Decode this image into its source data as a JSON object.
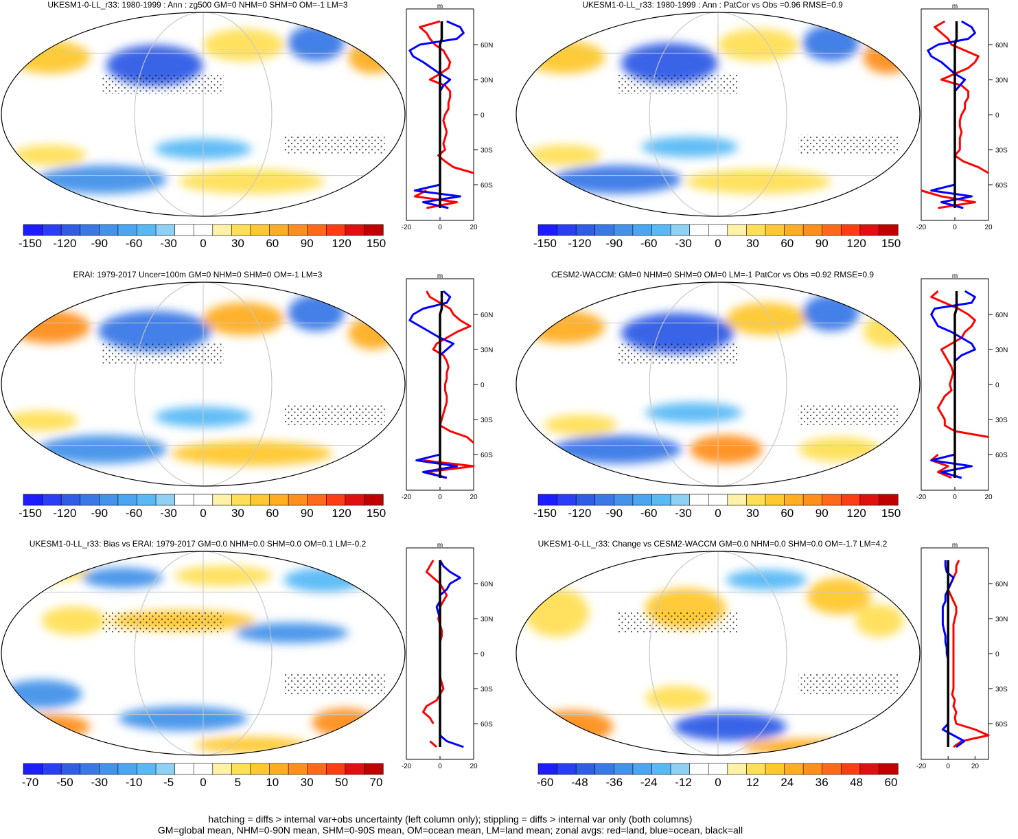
{
  "colors": {
    "land": "#ff0000",
    "ocean": "#0000ff",
    "all": "#000000",
    "colorbar_diverging": [
      "#1d1dff",
      "#2a3ff5",
      "#2f5de6",
      "#3a78e6",
      "#4592ea",
      "#4aa6f0",
      "#59b9f5",
      "#8fd0f5",
      "#ffffff",
      "#ffffff",
      "#fff1a8",
      "#ffdf57",
      "#ffc82e",
      "#ffae22",
      "#ff8f1c",
      "#ff6a1a",
      "#ff3d12",
      "#e01010",
      "#c00000"
    ],
    "map_outline": "#000000"
  },
  "footer": {
    "line1": "hatching = diffs > internal var+obs uncertainty (left column only); stippling = diffs > internal var only (both columns)",
    "line2": "GM=global mean, NHM=0-90N mean, SHM=0-90S mean, OM=ocean mean, LM=land mean; zonal avgs: red=land, blue=ocean, black=all"
  },
  "chart_data": [
    {
      "type": "heatmap",
      "title": "UKESM1-0-LL_r33: 1980-1999 : Ann : zg500 GM=0 NHM=0 SHM=0 OM=-1 LM=3",
      "colorbar_labels": [
        "-150",
        "-120",
        "-90",
        "-60",
        "-30",
        "0",
        "30",
        "60",
        "90",
        "120",
        "150"
      ],
      "zonal": {
        "units": "m",
        "xlim": [
          -20,
          20
        ],
        "xticks": [
          "-20",
          "0",
          "20"
        ],
        "lat_ticks": [
          "60N",
          "30N",
          "0",
          "30S",
          "60S"
        ],
        "lat": [
          80,
          75,
          70,
          65,
          60,
          55,
          50,
          45,
          40,
          35,
          30,
          25,
          20,
          15,
          10,
          5,
          0,
          -5,
          -10,
          -15,
          -20,
          -25,
          -30,
          -35,
          -40,
          -45,
          -50,
          -55,
          -60,
          -65,
          -70,
          -75,
          -80
        ],
        "series": [
          {
            "name": "land",
            "values": [
              0,
              -12,
              -8,
              -6,
              -3,
              2,
              4,
              6,
              5,
              0,
              -6,
              3,
              6,
              6,
              5,
              5,
              3,
              2,
              3,
              4,
              3,
              2,
              3,
              -1,
              3,
              8,
              20,
              null,
              null,
              -8,
              -15,
              10,
              -8
            ]
          },
          {
            "name": "ocean",
            "values": [
              4,
              12,
              14,
              10,
              -12,
              -18,
              -16,
              -10,
              -5,
              0,
              6,
              2,
              0,
              0,
              0,
              0,
              0,
              0,
              0,
              0,
              0,
              0,
              0,
              0,
              0,
              0,
              0,
              0,
              0,
              -15,
              12,
              -10,
              5
            ]
          },
          {
            "name": "all",
            "values": [
              1,
              1,
              1,
              1,
              0,
              0,
              0,
              0,
              0,
              0,
              0,
              0,
              0,
              0,
              0,
              0,
              0,
              0,
              0,
              0,
              0,
              0,
              0,
              0,
              0,
              0,
              0,
              0,
              0,
              0,
              0,
              0,
              0
            ]
          }
        ]
      }
    },
    {
      "type": "heatmap",
      "title": "UKESM1-0-LL_r33: 1980-1999 : Ann : PatCor vs Obs =0.96 RMSE=0.9",
      "colorbar_labels": [
        "-150",
        "-120",
        "-90",
        "-60",
        "-30",
        "0",
        "30",
        "60",
        "90",
        "120",
        "150"
      ],
      "zonal": {
        "units": "m",
        "xlim": [
          -20,
          20
        ],
        "xticks": [
          "-20",
          "0",
          "20"
        ],
        "lat_ticks": [
          "60N",
          "30N",
          "0",
          "30S",
          "60S"
        ],
        "lat": [
          80,
          75,
          70,
          65,
          60,
          55,
          50,
          45,
          40,
          35,
          30,
          25,
          20,
          15,
          10,
          5,
          0,
          -5,
          -10,
          -15,
          -20,
          -25,
          -30,
          -35,
          -40,
          -45,
          -50,
          -55,
          -60,
          -65,
          -70,
          -75,
          -80
        ],
        "series": [
          {
            "name": "land",
            "values": [
              -6,
              -12,
              -8,
              -4,
              -2,
              6,
              14,
              12,
              8,
              0,
              -8,
              4,
              8,
              8,
              6,
              6,
              4,
              3,
              3,
              4,
              3,
              3,
              3,
              0,
              5,
              14,
              20,
              null,
              null,
              -20,
              -8,
              12,
              -10
            ]
          },
          {
            "name": "ocean",
            "values": [
              4,
              10,
              12,
              8,
              -10,
              -16,
              -14,
              -8,
              -4,
              0,
              6,
              3,
              0,
              0,
              0,
              0,
              0,
              0,
              0,
              0,
              0,
              0,
              0,
              0,
              0,
              0,
              0,
              0,
              0,
              -14,
              10,
              -8,
              5
            ]
          },
          {
            "name": "all",
            "values": [
              1,
              1,
              1,
              1,
              0,
              0,
              0,
              0,
              0,
              0,
              0,
              0,
              0,
              0,
              0,
              0,
              0,
              0,
              0,
              0,
              0,
              0,
              0,
              0,
              0,
              0,
              0,
              0,
              0,
              0,
              0,
              0,
              0
            ]
          }
        ]
      }
    },
    {
      "type": "heatmap",
      "title": "ERAI: 1979-2017 Uncer=100m GM=0 NHM=0 SHM=0 OM=-1 LM=3",
      "colorbar_labels": [
        "-150",
        "-120",
        "-90",
        "-60",
        "-30",
        "0",
        "30",
        "60",
        "90",
        "120",
        "150"
      ],
      "zonal": {
        "units": "m",
        "xlim": [
          -20,
          20
        ],
        "xticks": [
          "-20",
          "0",
          "20"
        ],
        "lat_ticks": [
          "60N",
          "30N",
          "0",
          "30S",
          "60S"
        ],
        "lat": [
          80,
          75,
          70,
          65,
          60,
          55,
          50,
          45,
          40,
          35,
          30,
          25,
          20,
          15,
          10,
          5,
          0,
          -5,
          -10,
          -15,
          -20,
          -25,
          -30,
          -35,
          -40,
          -45,
          -50,
          -55,
          -60,
          -65,
          -70,
          -75,
          -80
        ],
        "series": [
          {
            "name": "land",
            "values": [
              -8,
              -6,
              0,
              6,
              8,
              12,
              18,
              10,
              4,
              -2,
              -4,
              2,
              4,
              5,
              4,
              4,
              3,
              3,
              4,
              4,
              3,
              2,
              1,
              0,
              6,
              16,
              20,
              null,
              null,
              -10,
              20,
              -8,
              4
            ]
          },
          {
            "name": "ocean",
            "values": [
              2,
              6,
              4,
              -10,
              -16,
              -18,
              -12,
              -6,
              0,
              8,
              4,
              0,
              0,
              0,
              0,
              0,
              0,
              0,
              0,
              0,
              0,
              0,
              0,
              0,
              0,
              0,
              0,
              0,
              0,
              -14,
              10,
              -10,
              4
            ]
          },
          {
            "name": "all",
            "values": [
              1,
              1,
              1,
              1,
              0,
              0,
              0,
              0,
              0,
              0,
              0,
              0,
              0,
              0,
              0,
              0,
              0,
              0,
              0,
              0,
              0,
              0,
              0,
              0,
              0,
              0,
              0,
              0,
              0,
              0,
              0,
              0,
              0
            ]
          }
        ]
      }
    },
    {
      "type": "heatmap",
      "title": "CESM2-WACCM: GM=0 NHM=0 SHM=0 OM=0 LM=-1 PatCor vs Obs =0.92 RMSE=0.9",
      "colorbar_labels": [
        "-150",
        "-120",
        "-90",
        "-60",
        "-30",
        "0",
        "30",
        "60",
        "90",
        "120",
        "150"
      ],
      "zonal": {
        "units": "m",
        "xlim": [
          -20,
          20
        ],
        "xticks": [
          "-20",
          "0",
          "20"
        ],
        "lat_ticks": [
          "60N",
          "30N",
          "0",
          "30S",
          "60S"
        ],
        "lat": [
          80,
          75,
          70,
          65,
          60,
          55,
          50,
          45,
          40,
          35,
          30,
          25,
          20,
          15,
          10,
          5,
          0,
          -5,
          -10,
          -15,
          -20,
          -25,
          -30,
          -35,
          -40,
          -45,
          -50,
          -55,
          -60,
          -65,
          -70,
          -75,
          -80
        ],
        "series": [
          {
            "name": "land",
            "values": [
              -10,
              -14,
              -6,
              2,
              8,
              12,
              10,
              6,
              4,
              -2,
              -8,
              -6,
              -4,
              -2,
              -1,
              -2,
              -3,
              -2,
              -6,
              -8,
              -10,
              -8,
              -6,
              -6,
              0,
              20,
              null,
              null,
              -10,
              -14,
              -4,
              -10,
              -2
            ]
          },
          {
            "name": "ocean",
            "values": [
              6,
              12,
              10,
              -12,
              -14,
              -12,
              -10,
              -2,
              4,
              10,
              12,
              4,
              0,
              0,
              0,
              0,
              0,
              0,
              0,
              0,
              0,
              0,
              0,
              0,
              0,
              0,
              0,
              0,
              0,
              -14,
              10,
              -8,
              4
            ]
          },
          {
            "name": "all",
            "values": [
              1,
              1,
              1,
              1,
              0,
              0,
              0,
              0,
              0,
              0,
              0,
              0,
              0,
              0,
              0,
              0,
              0,
              0,
              0,
              0,
              0,
              0,
              0,
              0,
              0,
              0,
              0,
              0,
              0,
              0,
              0,
              0,
              0
            ]
          }
        ]
      }
    },
    {
      "type": "heatmap",
      "title": "UKESM1-0-LL_r33: Bias vs ERAI: 1979-2017 GM=0.0 NHM=0.0 SHM=0.0 OM=0.1 LM=-0.2",
      "colorbar_labels": [
        "-70",
        "-50",
        "-30",
        "-10",
        "-5",
        "0",
        "5",
        "10",
        "30",
        "50",
        "70"
      ],
      "zonal": {
        "units": "m",
        "xlim": [
          -20,
          20
        ],
        "xticks": [
          "-20",
          "0",
          "20"
        ],
        "lat_ticks": [
          "60N",
          "30N",
          "0",
          "30S",
          "60S"
        ],
        "lat": [
          80,
          75,
          70,
          65,
          60,
          55,
          50,
          45,
          40,
          35,
          30,
          25,
          20,
          15,
          10,
          5,
          0,
          -5,
          -10,
          -15,
          -20,
          -25,
          -30,
          -35,
          -40,
          -45,
          -50,
          -55,
          -60,
          -65,
          -70,
          -75,
          -80
        ],
        "series": [
          {
            "name": "land",
            "values": [
              -4,
              -6,
              -8,
              -4,
              0,
              2,
              4,
              2,
              0,
              0,
              -1,
              0,
              1,
              1,
              0,
              0,
              0,
              0,
              0,
              0,
              0,
              1,
              2,
              0,
              -2,
              -8,
              -10,
              -6,
              -4,
              null,
              null,
              -6,
              -2
            ]
          },
          {
            "name": "ocean",
            "values": [
              0,
              2,
              6,
              12,
              6,
              4,
              0,
              0,
              -2,
              -1,
              0,
              0,
              0,
              0,
              0,
              0,
              0,
              0,
              0,
              0,
              0,
              0,
              0,
              0,
              0,
              0,
              0,
              0,
              0,
              0,
              0,
              4,
              14
            ]
          },
          {
            "name": "all",
            "values": [
              0,
              0,
              0,
              0,
              0,
              0,
              0,
              0,
              0,
              0,
              0,
              0,
              0,
              0,
              0,
              0,
              0,
              0,
              0,
              0,
              0,
              0,
              0,
              0,
              0,
              0,
              0,
              0,
              0,
              0,
              0,
              0,
              0
            ]
          }
        ]
      }
    },
    {
      "type": "heatmap",
      "title": "UKESM1-0-LL_r33: Change vs CESM2-WACCM GM=0.0 NHM=0.0 SHM=0.0 OM=-1.7 LM=4.2",
      "colorbar_labels": [
        "-60",
        "-48",
        "-36",
        "-24",
        "-12",
        "0",
        "12",
        "24",
        "36",
        "48",
        "60"
      ],
      "zonal": {
        "units": "m",
        "xlim": [
          -20,
          30
        ],
        "xticks": [
          "-20",
          "0",
          "20"
        ],
        "lat_ticks": [
          "60N",
          "30N",
          "0",
          "30S",
          "60S"
        ],
        "lat": [
          80,
          75,
          70,
          65,
          60,
          55,
          50,
          45,
          40,
          35,
          30,
          25,
          20,
          15,
          10,
          5,
          0,
          -5,
          -10,
          -15,
          -20,
          -25,
          -30,
          -35,
          -40,
          -45,
          -50,
          -55,
          -60,
          -65,
          -70,
          -75,
          -80
        ],
        "series": [
          {
            "name": "land",
            "values": [
              8,
              6,
              6,
              4,
              2,
              0,
              2,
              4,
              6,
              6,
              5,
              4,
              4,
              4,
              4,
              4,
              4,
              4,
              4,
              4,
              4,
              4,
              4,
              3,
              5,
              4,
              6,
              5,
              6,
              20,
              30,
              10,
              4
            ]
          },
          {
            "name": "ocean",
            "values": [
              -2,
              -2,
              -1,
              4,
              2,
              0,
              -2,
              -2,
              -4,
              -4,
              -4,
              -4,
              -3,
              -2,
              -2,
              -1,
              -1,
              0,
              0,
              0,
              0,
              0,
              0,
              0,
              0,
              0,
              0,
              0,
              0,
              -4,
              4,
              12,
              6
            ]
          },
          {
            "name": "all",
            "values": [
              0,
              0,
              0,
              0,
              0,
              0,
              0,
              0,
              0,
              0,
              0,
              0,
              0,
              0,
              0,
              0,
              0,
              0,
              0,
              0,
              0,
              0,
              0,
              0,
              0,
              0,
              0,
              0,
              0,
              0,
              0,
              0,
              0
            ]
          }
        ]
      }
    }
  ]
}
